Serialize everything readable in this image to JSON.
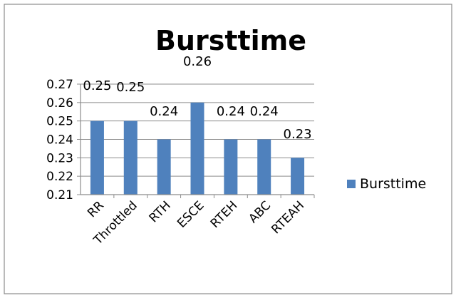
{
  "chart_data": {
    "type": "bar",
    "title": "Bursttime",
    "xlabel": "",
    "ylabel": "",
    "categories": [
      "RR",
      "Throttled",
      "RTH",
      "ESCE",
      "RTEH",
      "ABC",
      "RTEAH"
    ],
    "series": [
      {
        "name": "Bursttime",
        "values": [
          0.25,
          0.25,
          0.24,
          0.26,
          0.24,
          0.24,
          0.23
        ],
        "labels": [
          "0.25",
          "0.25",
          "0.24",
          "0.26",
          "0.24",
          "0.24",
          "0.23"
        ]
      }
    ],
    "ylim": [
      0.21,
      0.27
    ],
    "yticks": [
      "0.21",
      "0.22",
      "0.23",
      "0.24",
      "0.25",
      "0.26",
      "0.27"
    ],
    "grid": true,
    "legend": "right",
    "colors": {
      "bar": "#4f81bd",
      "grid": "#8c8c8c",
      "frame": "#8c8c8c",
      "axis": "#8c8c8c"
    }
  }
}
